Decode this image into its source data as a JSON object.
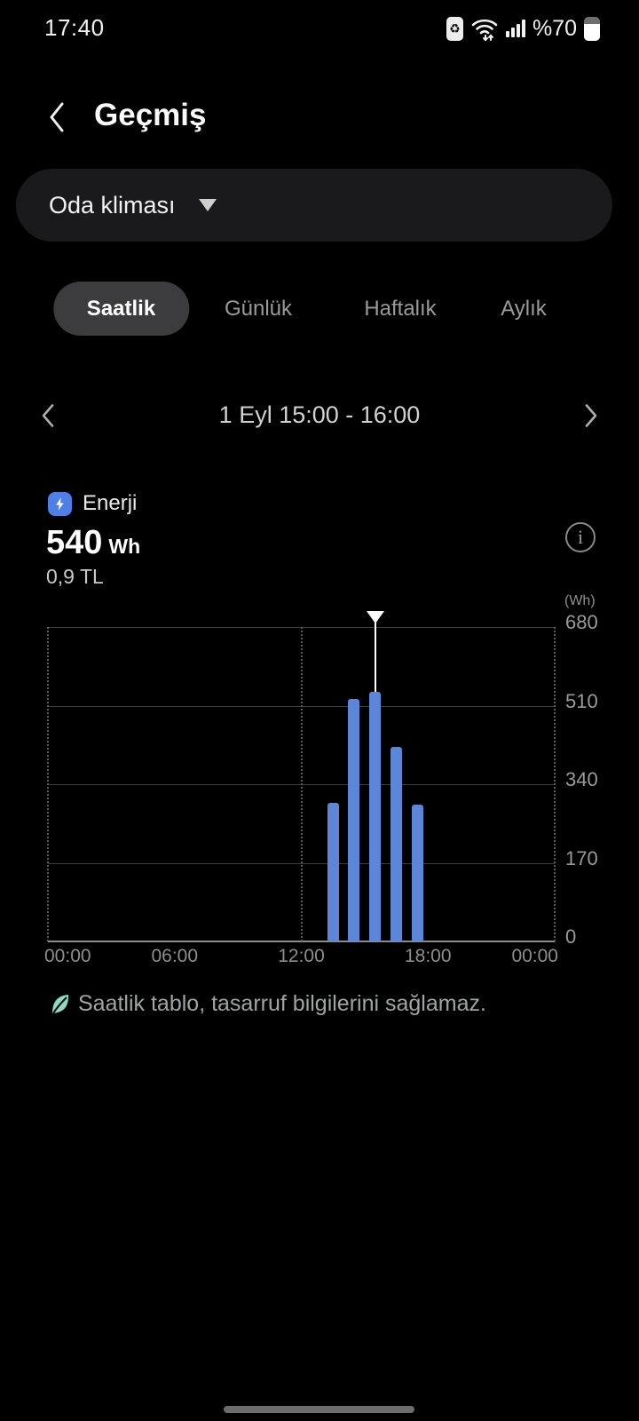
{
  "status_bar": {
    "time": "17:40",
    "battery_text": "%70",
    "icons": [
      "battery-saver-icon",
      "wifi-icon",
      "signal-strength-icon",
      "battery-icon"
    ]
  },
  "header": {
    "title": "Geçmiş"
  },
  "device_selector": {
    "value": "Oda kliması"
  },
  "tabs": {
    "items": [
      {
        "name": "tab-saatlik",
        "label": "Saatlik",
        "selected": true
      },
      {
        "name": "tab-gunluk",
        "label": "Günlük",
        "selected": false
      },
      {
        "name": "tab-haftalik",
        "label": "Haftalık",
        "selected": false
      },
      {
        "name": "tab-aylik",
        "label": "Aylık",
        "selected": false
      }
    ]
  },
  "period_nav": {
    "label": "1 Eyl 15:00 - 16:00"
  },
  "energy_summary": {
    "label": "Enerji",
    "value": "540",
    "unit": "Wh",
    "cost": "0,9 TL"
  },
  "chart_data": {
    "type": "bar",
    "unit_label": "(Wh)",
    "ylim": [
      0,
      680
    ],
    "yticks": [
      0,
      170,
      340,
      510,
      680
    ],
    "x_range_hours": [
      0,
      24
    ],
    "xticks": [
      {
        "hour": 0,
        "label": "00:00"
      },
      {
        "hour": 6,
        "label": "06:00"
      },
      {
        "hour": 12,
        "label": "12:00"
      },
      {
        "hour": 18,
        "label": "18:00"
      },
      {
        "hour": 24,
        "label": "00:00"
      }
    ],
    "vgrid_hours": [
      0,
      12,
      24
    ],
    "grid": true,
    "bars": [
      {
        "hour": 13,
        "value": 300
      },
      {
        "hour": 14,
        "value": 525
      },
      {
        "hour": 15,
        "value": 540
      },
      {
        "hour": 16,
        "value": 420
      },
      {
        "hour": 17,
        "value": 295
      }
    ],
    "selected_hour": 15,
    "selected_value": 540,
    "bar_color": "#5d85d8",
    "marker_color": "#ffffff"
  },
  "footnote": {
    "text": "Saatlik tablo, tasarruf bilgilerini sağlamaz."
  },
  "colors": {
    "background": "#000000",
    "card_bg": "#1a1a1c",
    "selected_pill_bg": "#3c3c3e",
    "bar_blue": "#5d85d8",
    "energy_icon_blue": "#4e7ee6",
    "leaf_teal": "#8fd8c8"
  }
}
